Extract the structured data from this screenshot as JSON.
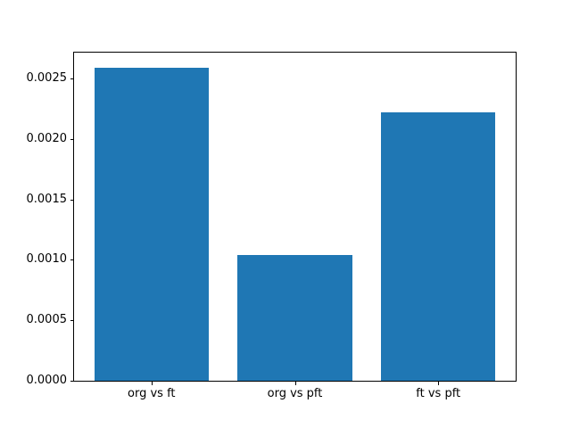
{
  "figure": {
    "background": "#ffffff",
    "text_color": "#000000",
    "spine_color": "#000000"
  },
  "chart_data": {
    "type": "bar",
    "title": "",
    "xlabel": "",
    "ylabel": "",
    "categories": [
      "org vs ft",
      "org vs pft",
      "ft vs pft"
    ],
    "values": [
      0.00259,
      0.00104,
      0.00222
    ],
    "bar_color": "#1f77b4",
    "bar_width_fraction": 0.8,
    "xlim": [
      -0.54,
      2.54
    ],
    "ylim": [
      0,
      0.002715
    ],
    "yticks": {
      "values": [
        0.0,
        0.0005,
        0.001,
        0.0015,
        0.002,
        0.0025
      ],
      "labels": [
        "0.0000",
        "0.0005",
        "0.0010",
        "0.0015",
        "0.0020",
        "0.0025"
      ]
    },
    "grid": false,
    "legend": null
  }
}
